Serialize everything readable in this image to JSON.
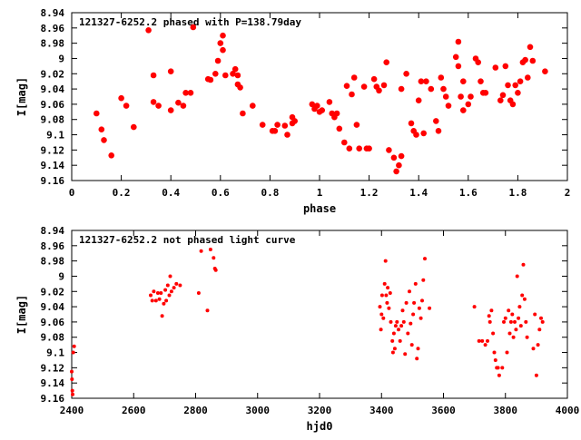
{
  "chart_data": [
    {
      "type": "scatter",
      "title": "121327-6252.2 phased with P=138.79day",
      "xlabel": "phase",
      "ylabel": "I[mag]",
      "xlim": [
        0,
        2
      ],
      "ylim": [
        8.94,
        9.16
      ],
      "y_inverted": true,
      "grid": false,
      "legend": "none",
      "marker": "filled-circle-large",
      "color": "#ff0000",
      "x_ticks": [
        "0",
        "0.2",
        "0.4",
        "0.6",
        "0.8",
        "1",
        "1.2",
        "1.4",
        "1.6",
        "1.8",
        "2"
      ],
      "x_tick_values": [
        0,
        0.2,
        0.4,
        0.6,
        0.8,
        1.0,
        1.2,
        1.4,
        1.6,
        1.8,
        2.0
      ],
      "y_ticks": [
        "8.94",
        "8.96",
        "8.98",
        "9",
        "9.02",
        "9.04",
        "9.06",
        "9.08",
        "9.1",
        "9.12",
        "9.14",
        "9.16"
      ],
      "y_tick_values": [
        8.94,
        8.96,
        8.98,
        9.0,
        9.02,
        9.04,
        9.06,
        9.08,
        9.1,
        9.12,
        9.14,
        9.16
      ],
      "points": [
        [
          0.1,
          9.072
        ],
        [
          0.12,
          9.093
        ],
        [
          0.13,
          9.107
        ],
        [
          0.16,
          9.127
        ],
        [
          0.2,
          9.052
        ],
        [
          0.22,
          9.062
        ],
        [
          0.25,
          9.09
        ],
        [
          0.31,
          8.963
        ],
        [
          0.33,
          9.022
        ],
        [
          0.33,
          9.057
        ],
        [
          0.35,
          9.062
        ],
        [
          0.4,
          9.017
        ],
        [
          0.4,
          9.068
        ],
        [
          0.43,
          9.058
        ],
        [
          0.45,
          9.062
        ],
        [
          0.46,
          9.045
        ],
        [
          0.48,
          9.045
        ],
        [
          0.49,
          8.959
        ],
        [
          0.55,
          9.027
        ],
        [
          0.56,
          9.028
        ],
        [
          0.58,
          9.02
        ],
        [
          0.59,
          9.003
        ],
        [
          0.6,
          8.98
        ],
        [
          0.61,
          8.97
        ],
        [
          0.61,
          8.989
        ],
        [
          0.62,
          9.022
        ],
        [
          0.65,
          9.02
        ],
        [
          0.66,
          9.014
        ],
        [
          0.67,
          9.022
        ],
        [
          0.67,
          9.034
        ],
        [
          0.68,
          9.038
        ],
        [
          0.69,
          9.072
        ],
        [
          0.73,
          9.062
        ],
        [
          0.77,
          9.087
        ],
        [
          0.81,
          9.095
        ],
        [
          0.82,
          9.095
        ],
        [
          0.83,
          9.087
        ],
        [
          0.86,
          9.088
        ],
        [
          0.87,
          9.1
        ],
        [
          0.89,
          9.077
        ],
        [
          0.89,
          9.085
        ],
        [
          0.9,
          9.082
        ],
        [
          0.97,
          9.06
        ],
        [
          0.98,
          9.066
        ],
        [
          0.99,
          9.062
        ],
        [
          1.0,
          9.07
        ],
        [
          1.01,
          9.068
        ],
        [
          1.04,
          9.057
        ],
        [
          1.05,
          9.072
        ],
        [
          1.06,
          9.077
        ],
        [
          1.07,
          9.072
        ],
        [
          1.08,
          9.092
        ],
        [
          1.1,
          9.11
        ],
        [
          1.11,
          9.036
        ],
        [
          1.12,
          9.118
        ],
        [
          1.13,
          9.047
        ],
        [
          1.14,
          9.025
        ],
        [
          1.15,
          9.087
        ],
        [
          1.16,
          9.118
        ],
        [
          1.18,
          9.037
        ],
        [
          1.19,
          9.118
        ],
        [
          1.2,
          9.118
        ],
        [
          1.22,
          9.027
        ],
        [
          1.23,
          9.037
        ],
        [
          1.24,
          9.042
        ],
        [
          1.26,
          9.035
        ],
        [
          1.27,
          9.005
        ],
        [
          1.28,
          9.12
        ],
        [
          1.3,
          9.13
        ],
        [
          1.31,
          9.148
        ],
        [
          1.32,
          9.14
        ],
        [
          1.33,
          9.128
        ],
        [
          1.33,
          9.04
        ],
        [
          1.35,
          9.02
        ],
        [
          1.37,
          9.085
        ],
        [
          1.38,
          9.095
        ],
        [
          1.39,
          9.1
        ],
        [
          1.4,
          9.055
        ],
        [
          1.41,
          9.03
        ],
        [
          1.42,
          9.098
        ],
        [
          1.43,
          9.03
        ],
        [
          1.45,
          9.04
        ],
        [
          1.47,
          9.082
        ],
        [
          1.48,
          9.095
        ],
        [
          1.49,
          9.025
        ],
        [
          1.5,
          9.04
        ],
        [
          1.51,
          9.05
        ],
        [
          1.52,
          9.062
        ],
        [
          1.55,
          8.998
        ],
        [
          1.56,
          8.978
        ],
        [
          1.56,
          9.01
        ],
        [
          1.57,
          9.05
        ],
        [
          1.58,
          9.068
        ],
        [
          1.58,
          9.03
        ],
        [
          1.6,
          9.06
        ],
        [
          1.61,
          9.05
        ],
        [
          1.63,
          9.0
        ],
        [
          1.64,
          9.005
        ],
        [
          1.65,
          9.03
        ],
        [
          1.66,
          9.045
        ],
        [
          1.67,
          9.045
        ],
        [
          1.71,
          9.012
        ],
        [
          1.73,
          9.055
        ],
        [
          1.74,
          9.048
        ],
        [
          1.75,
          9.01
        ],
        [
          1.76,
          9.035
        ],
        [
          1.77,
          9.055
        ],
        [
          1.78,
          9.06
        ],
        [
          1.79,
          9.035
        ],
        [
          1.8,
          9.045
        ],
        [
          1.81,
          9.03
        ],
        [
          1.82,
          9.005
        ],
        [
          1.83,
          9.002
        ],
        [
          1.84,
          9.025
        ],
        [
          1.85,
          8.985
        ],
        [
          1.86,
          9.003
        ],
        [
          1.91,
          9.017
        ]
      ]
    },
    {
      "type": "scatter",
      "title": "121327-6252.2 not phased light curve",
      "xlabel": "hjd0",
      "ylabel": "I[mag]",
      "xlim": [
        2400,
        4000
      ],
      "ylim": [
        8.94,
        9.16
      ],
      "y_inverted": true,
      "grid": false,
      "legend": "none",
      "marker": "filled-circle-small",
      "color": "#ff0000",
      "x_ticks": [
        "2400",
        "2600",
        "2800",
        "3000",
        "3200",
        "3400",
        "3600",
        "3800",
        "4000"
      ],
      "x_tick_values": [
        2400,
        2600,
        2800,
        3000,
        3200,
        3400,
        3600,
        3800,
        4000
      ],
      "y_ticks": [
        "8.94",
        "8.96",
        "8.98",
        "9",
        "9.02",
        "9.04",
        "9.06",
        "9.08",
        "9.1",
        "9.12",
        "9.14",
        "9.16"
      ],
      "y_tick_values": [
        8.94,
        8.96,
        8.98,
        9.0,
        9.02,
        9.04,
        9.06,
        9.08,
        9.1,
        9.12,
        9.14,
        9.16
      ],
      "points": [
        [
          2400,
          9.125
        ],
        [
          2401,
          9.135
        ],
        [
          2402,
          9.15
        ],
        [
          2403,
          9.155
        ],
        [
          2405,
          9.1
        ],
        [
          2408,
          9.092
        ],
        [
          2655,
          9.025
        ],
        [
          2660,
          9.032
        ],
        [
          2665,
          9.02
        ],
        [
          2672,
          9.032
        ],
        [
          2678,
          9.022
        ],
        [
          2683,
          9.03
        ],
        [
          2688,
          9.022
        ],
        [
          2692,
          9.052
        ],
        [
          2697,
          9.036
        ],
        [
          2702,
          9.018
        ],
        [
          2705,
          9.032
        ],
        [
          2710,
          9.012
        ],
        [
          2715,
          9.025
        ],
        [
          2718,
          9.0
        ],
        [
          2722,
          9.02
        ],
        [
          2730,
          9.015
        ],
        [
          2738,
          9.01
        ],
        [
          2750,
          9.012
        ],
        [
          2810,
          9.022
        ],
        [
          2818,
          8.967
        ],
        [
          2838,
          9.045
        ],
        [
          2848,
          8.965
        ],
        [
          2858,
          8.976
        ],
        [
          2862,
          8.99
        ],
        [
          2865,
          8.992
        ],
        [
          3395,
          9.04
        ],
        [
          3398,
          9.07
        ],
        [
          3400,
          9.05
        ],
        [
          3402,
          9.025
        ],
        [
          3406,
          9.055
        ],
        [
          3410,
          9.01
        ],
        [
          3413,
          8.98
        ],
        [
          3415,
          9.025
        ],
        [
          3418,
          9.035
        ],
        [
          3420,
          9.015
        ],
        [
          3424,
          9.042
        ],
        [
          3428,
          9.022
        ],
        [
          3430,
          9.06
        ],
        [
          3435,
          9.085
        ],
        [
          3437,
          9.1
        ],
        [
          3440,
          9.075
        ],
        [
          3443,
          9.095
        ],
        [
          3446,
          9.065
        ],
        [
          3450,
          9.06
        ],
        [
          3455,
          9.07
        ],
        [
          3460,
          9.085
        ],
        [
          3464,
          9.065
        ],
        [
          3468,
          9.045
        ],
        [
          3472,
          9.06
        ],
        [
          3476,
          9.102
        ],
        [
          3480,
          9.035
        ],
        [
          3485,
          9.075
        ],
        [
          3490,
          9.02
        ],
        [
          3494,
          9.062
        ],
        [
          3498,
          9.09
        ],
        [
          3502,
          9.05
        ],
        [
          3505,
          9.035
        ],
        [
          3510,
          9.01
        ],
        [
          3514,
          9.108
        ],
        [
          3518,
          9.095
        ],
        [
          3522,
          9.042
        ],
        [
          3527,
          9.055
        ],
        [
          3531,
          9.032
        ],
        [
          3535,
          9.005
        ],
        [
          3540,
          8.977
        ],
        [
          3555,
          9.042
        ],
        [
          3700,
          9.04
        ],
        [
          3715,
          9.085
        ],
        [
          3725,
          9.085
        ],
        [
          3735,
          9.09
        ],
        [
          3742,
          9.085
        ],
        [
          3747,
          9.052
        ],
        [
          3750,
          9.06
        ],
        [
          3755,
          9.045
        ],
        [
          3760,
          9.075
        ],
        [
          3764,
          9.1
        ],
        [
          3768,
          9.11
        ],
        [
          3772,
          9.12
        ],
        [
          3776,
          9.12
        ],
        [
          3780,
          9.13
        ],
        [
          3790,
          9.12
        ],
        [
          3795,
          9.06
        ],
        [
          3800,
          9.055
        ],
        [
          3805,
          9.1
        ],
        [
          3810,
          9.045
        ],
        [
          3814,
          9.075
        ],
        [
          3818,
          9.06
        ],
        [
          3822,
          9.05
        ],
        [
          3826,
          9.08
        ],
        [
          3830,
          9.06
        ],
        [
          3834,
          9.07
        ],
        [
          3838,
          9.0
        ],
        [
          3842,
          9.055
        ],
        [
          3846,
          9.04
        ],
        [
          3850,
          9.065
        ],
        [
          3854,
          9.025
        ],
        [
          3858,
          8.985
        ],
        [
          3862,
          9.03
        ],
        [
          3866,
          9.06
        ],
        [
          3870,
          9.08
        ],
        [
          3890,
          9.095
        ],
        [
          3895,
          9.05
        ],
        [
          3900,
          9.13
        ],
        [
          3905,
          9.09
        ],
        [
          3910,
          9.07
        ],
        [
          3915,
          9.055
        ],
        [
          3920,
          9.06
        ]
      ]
    }
  ]
}
